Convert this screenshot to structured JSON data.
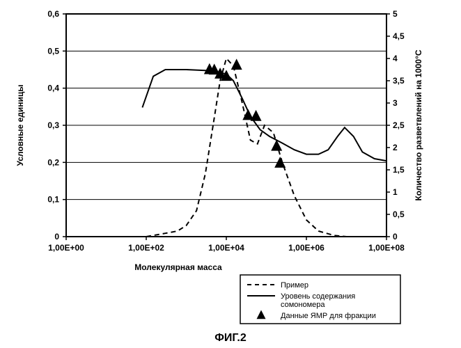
{
  "figure": {
    "caption": "ФИГ.2",
    "caption_fontsize": 16,
    "caption_weight": "bold",
    "background_color": "#ffffff",
    "text_color": "#000000",
    "axis_line_color": "#000000",
    "grid_color": "#000000",
    "grid_width": 1,
    "x_axis": {
      "label": "Молекулярная масса",
      "label_fontsize": 12,
      "label_weight": "bold",
      "scale": "log",
      "xlim": [
        1,
        100000000
      ],
      "ticks": [
        1,
        100,
        10000,
        1000000,
        100000000
      ],
      "tick_labels": [
        "1,00E+00",
        "1,00E+02",
        "1,00E+04",
        "1,00E+06",
        "1,00E+08"
      ],
      "tick_fontsize": 12,
      "tick_weight": "bold"
    },
    "y_axis_left": {
      "label": "Условные единицы",
      "label_fontsize": 12,
      "label_weight": "bold",
      "ylim": [
        0,
        0.6
      ],
      "ticks": [
        0,
        0.1,
        0.2,
        0.3,
        0.4,
        0.5,
        0.6
      ],
      "tick_labels": [
        "0",
        "0,1",
        "0,2",
        "0,3",
        "0,4",
        "0,5",
        "0,6"
      ],
      "tick_fontsize": 12,
      "tick_weight": "bold"
    },
    "y_axis_right": {
      "label": "Количество разветвлений на 1000°С",
      "label_fontsize": 12,
      "label_weight": "bold",
      "ylim": [
        0,
        5
      ],
      "ticks": [
        0,
        0.5,
        1,
        1.5,
        2,
        2.5,
        3,
        3.5,
        4,
        4.5,
        5
      ],
      "tick_labels": [
        "0",
        "0,5",
        "1",
        "1,5",
        "2",
        "2,5",
        "3",
        "3,5",
        "4",
        "4,5",
        "5"
      ],
      "tick_fontsize": 12,
      "tick_weight": "bold"
    },
    "series": {
      "dashed": {
        "name": "Пример",
        "type": "line",
        "yaxis": "left",
        "stroke": "#000000",
        "stroke_width": 2,
        "dash": "7,5",
        "data": [
          [
            100,
            0.0
          ],
          [
            300,
            0.009
          ],
          [
            600,
            0.015
          ],
          [
            1000,
            0.03
          ],
          [
            1800,
            0.07
          ],
          [
            3000,
            0.17
          ],
          [
            5000,
            0.32
          ],
          [
            7000,
            0.42
          ],
          [
            10000,
            0.48
          ],
          [
            15000,
            0.46
          ],
          [
            25000,
            0.36
          ],
          [
            40000,
            0.26
          ],
          [
            60000,
            0.25
          ],
          [
            90000,
            0.3
          ],
          [
            150000,
            0.28
          ],
          [
            250000,
            0.2
          ],
          [
            500000,
            0.11
          ],
          [
            1000000,
            0.045
          ],
          [
            2000000,
            0.015
          ],
          [
            5000000,
            0.003
          ],
          [
            10000000,
            0.0
          ]
        ]
      },
      "solid": {
        "name": "Уровень содержания сомономера",
        "type": "line",
        "yaxis": "right",
        "stroke": "#000000",
        "stroke_width": 2,
        "dash": "none",
        "data": [
          [
            80,
            2.9
          ],
          [
            150,
            3.6
          ],
          [
            300,
            3.75
          ],
          [
            1000,
            3.75
          ],
          [
            3000,
            3.73
          ],
          [
            6000,
            3.7
          ],
          [
            10000,
            3.65
          ],
          [
            15000,
            3.5
          ],
          [
            25000,
            3.1
          ],
          [
            40000,
            2.7
          ],
          [
            70000,
            2.4
          ],
          [
            120000,
            2.25
          ],
          [
            250000,
            2.1
          ],
          [
            500000,
            1.95
          ],
          [
            1000000,
            1.85
          ],
          [
            2000000,
            1.85
          ],
          [
            3500000,
            1.95
          ],
          [
            6000000,
            2.25
          ],
          [
            9000000,
            2.45
          ],
          [
            15000000,
            2.25
          ],
          [
            25000000,
            1.9
          ],
          [
            50000000,
            1.75
          ],
          [
            100000000,
            1.7
          ]
        ]
      },
      "triangles": {
        "name": "Данные ЯМР для фракции",
        "type": "scatter",
        "yaxis": "right",
        "marker": "triangle",
        "marker_size": 16,
        "marker_fill": "#000000",
        "data": [
          [
            3800,
            3.75
          ],
          [
            5000,
            3.74
          ],
          [
            7000,
            3.65
          ],
          [
            10000,
            3.6
          ],
          [
            18000,
            3.85
          ],
          [
            35000,
            2.72
          ],
          [
            55000,
            2.7
          ],
          [
            180000,
            2.03
          ],
          [
            220000,
            1.65
          ]
        ]
      }
    },
    "legend": {
      "border_color": "#000000",
      "fontsize": 11,
      "items": [
        {
          "key": "dashed",
          "label": "Пример"
        },
        {
          "key": "solid",
          "label": "Уровень содержания"
        },
        {
          "key": "solid2",
          "label_cont": "сомономера"
        },
        {
          "key": "tri",
          "label": "Данные ЯМР для фракции"
        }
      ]
    }
  }
}
